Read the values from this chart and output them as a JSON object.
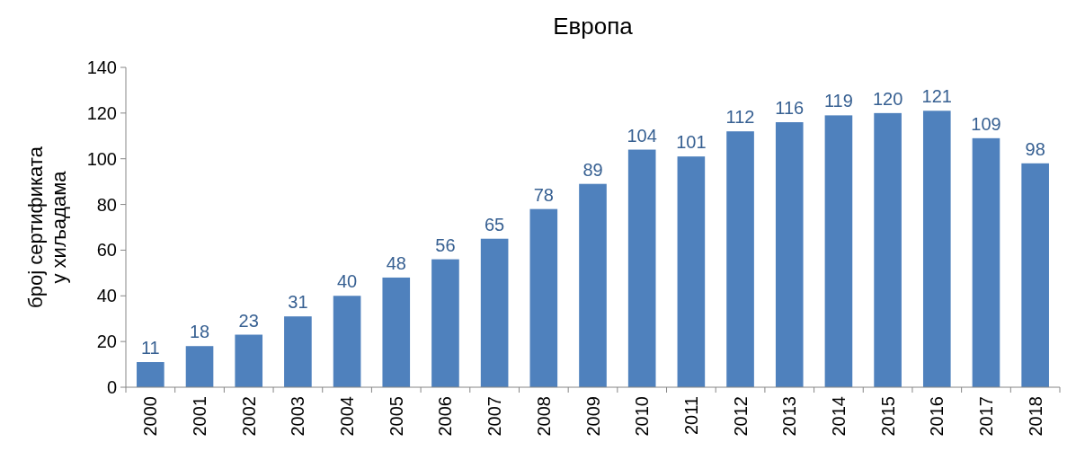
{
  "chart_data": {
    "type": "bar",
    "title": "Европа",
    "ylabel": "број сертификата\nу хиљадама",
    "categories": [
      "2000",
      "2001",
      "2002",
      "2003",
      "2004",
      "2005",
      "2006",
      "2007",
      "2008",
      "2009",
      "2010",
      "2011",
      "2012",
      "2013",
      "2014",
      "2015",
      "2016",
      "2017",
      "2018"
    ],
    "values": [
      11,
      18,
      23,
      31,
      40,
      48,
      56,
      65,
      78,
      89,
      104,
      101,
      112,
      116,
      119,
      120,
      121,
      109,
      98
    ],
    "color": "#4f81bd",
    "ylim": [
      0,
      140
    ],
    "yticks": [
      0,
      20,
      40,
      60,
      80,
      100,
      120,
      140
    ],
    "data_labels": true,
    "grid": false
  }
}
